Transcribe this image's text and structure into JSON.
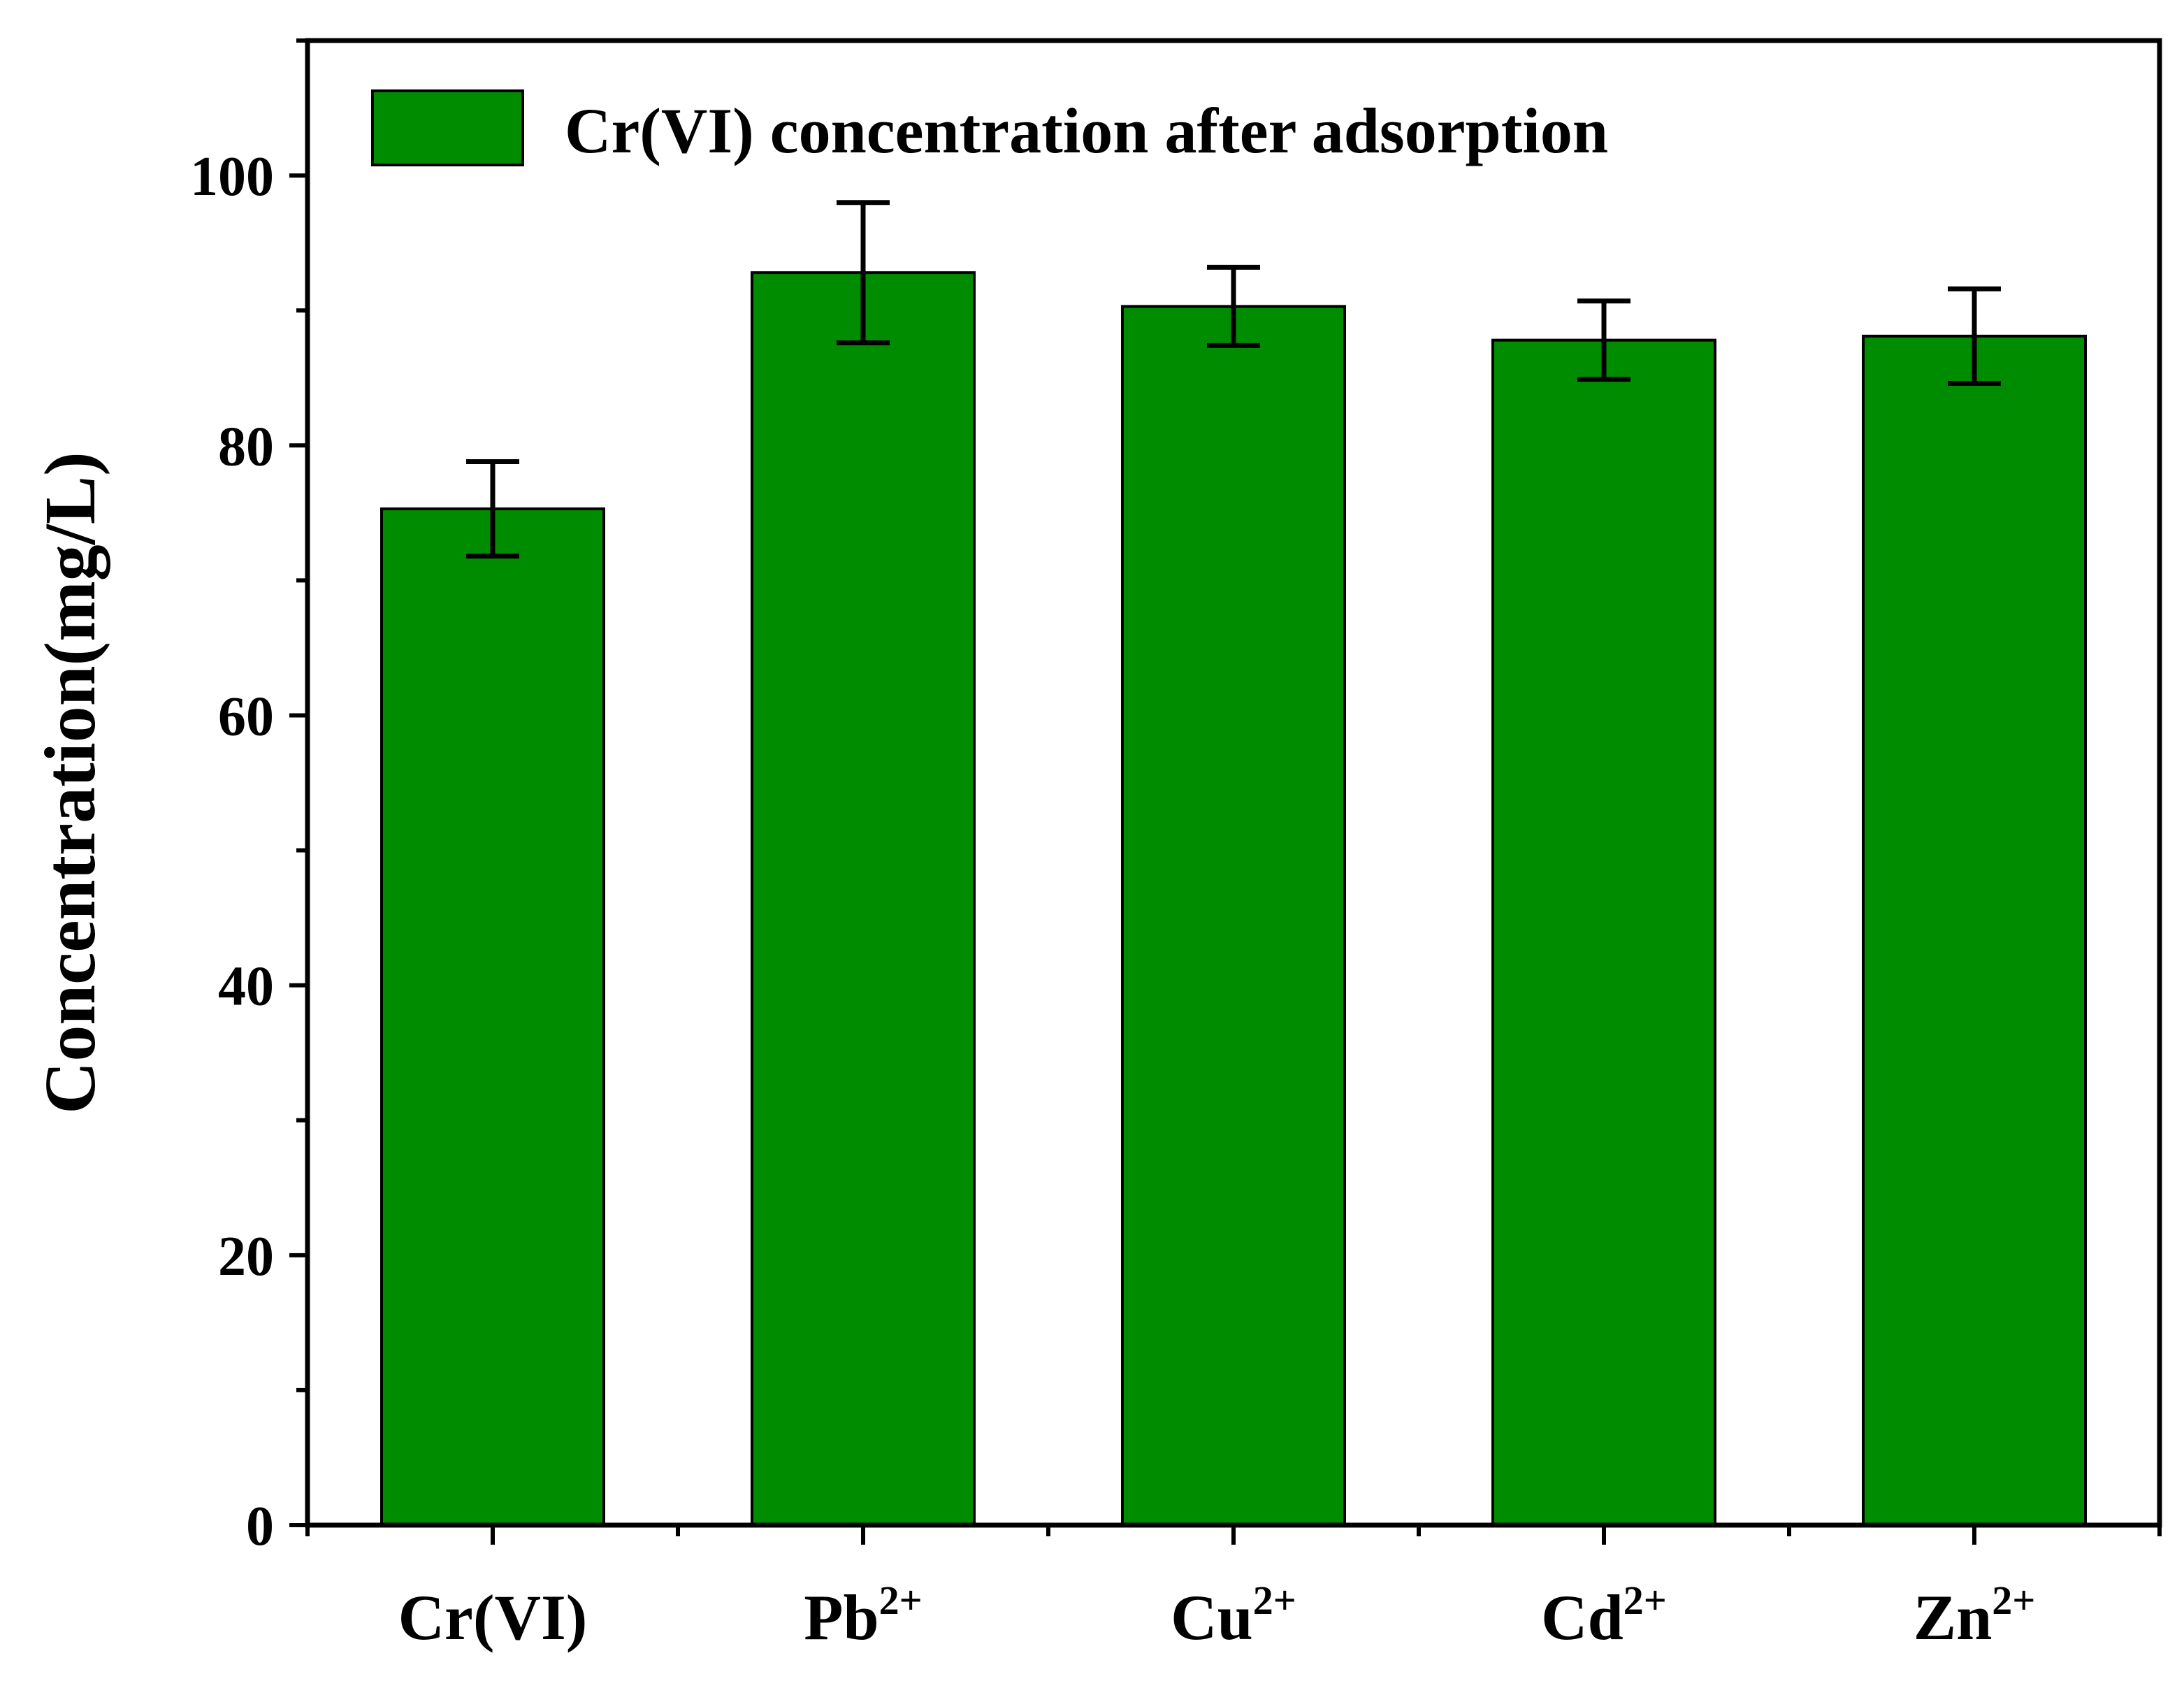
{
  "chart_data": {
    "type": "bar",
    "title": "",
    "xlabel": "",
    "ylabel": "Concentration(mg/L)",
    "ylim": [
      0,
      110
    ],
    "yticks": [
      0,
      20,
      40,
      60,
      80,
      100
    ],
    "ytick_labels": [
      "0",
      "20",
      "40",
      "60",
      "80",
      "100"
    ],
    "grid": false,
    "legend_position": "top",
    "legend": [
      "Cr(VI) concentration after adsorption"
    ],
    "categories": [
      {
        "base": "Cr(VI)",
        "sup": ""
      },
      {
        "base": "Pb",
        "sup": "2+"
      },
      {
        "base": "Cu",
        "sup": "2+"
      },
      {
        "base": "Cd",
        "sup": "2+"
      },
      {
        "base": "Zn",
        "sup": "2+"
      }
    ],
    "series": [
      {
        "name": "Cr(VI) concentration after adsorption",
        "values": [
          75.3,
          92.8,
          90.3,
          87.8,
          88.1
        ],
        "errors": [
          3.5,
          5.2,
          2.9,
          2.9,
          3.5
        ]
      }
    ],
    "colors": {
      "bar": "#008c00",
      "bar_edge": "#000000",
      "axis": "#000000",
      "error_bar": "#000000"
    }
  }
}
